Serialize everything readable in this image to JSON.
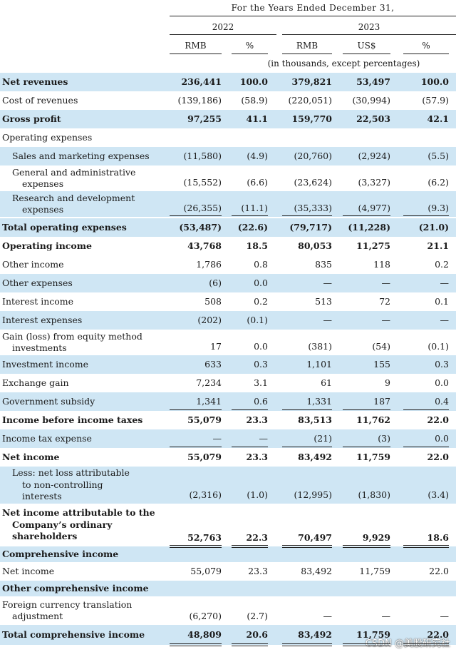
{
  "header": {
    "period": "For the  Years Ended December  31,",
    "year1": "2022",
    "year2": "2023",
    "columns": [
      "RMB",
      "%",
      "RMB",
      "US$",
      "%"
    ],
    "unit_note": "(in thousands, except percentages)"
  },
  "rows": [
    {
      "label": [
        "Net revenues"
      ],
      "bold": true,
      "values": [
        "236,441",
        "100.0",
        "379,821",
        "53,497",
        "100.0"
      ]
    },
    {
      "label": [
        "Cost of revenues"
      ],
      "values": [
        "(139,186)",
        "(58.9)",
        "(220,051)",
        "(30,994)",
        "(57.9)"
      ]
    },
    {
      "label": [
        "Gross profit"
      ],
      "bold": true,
      "values": [
        "97,255",
        "41.1",
        "159,770",
        "22,503",
        "42.1"
      ]
    },
    {
      "label": [
        "Operating expenses"
      ],
      "values": [
        "",
        "",
        "",
        "",
        ""
      ]
    },
    {
      "label": [
        "Sales and marketing expenses"
      ],
      "values": [
        "(11,580)",
        "(4.9)",
        "(20,760)",
        "(2,924)",
        "(5.5)"
      ]
    },
    {
      "label": [
        "General and administrative",
        "expenses"
      ],
      "values": [
        "(15,552)",
        "(6.6)",
        "(23,624)",
        "(3,327)",
        "(6.2)"
      ]
    },
    {
      "label": [
        "Research and development",
        "expenses"
      ],
      "values": [
        "(26,355)",
        "(11.1)",
        "(35,333)",
        "(4,977)",
        "(9.3)"
      ]
    },
    {
      "label": [
        "Total operating expenses"
      ],
      "bold": true,
      "values": [
        "(53,487)",
        "(22.6)",
        "(79,717)",
        "(11,228)",
        "(21.0)"
      ]
    },
    {
      "label": [
        "Operating income"
      ],
      "bold": true,
      "values": [
        "43,768",
        "18.5",
        "80,053",
        "11,275",
        "21.1"
      ]
    },
    {
      "label": [
        "Other income"
      ],
      "values": [
        "1,786",
        "0.8",
        "835",
        "118",
        "0.2"
      ]
    },
    {
      "label": [
        "Other expenses"
      ],
      "values": [
        "(6)",
        "0.0",
        "—",
        "—",
        "—"
      ]
    },
    {
      "label": [
        "Interest income"
      ],
      "values": [
        "508",
        "0.2",
        "513",
        "72",
        "0.1"
      ]
    },
    {
      "label": [
        "Interest expenses"
      ],
      "values": [
        "(202)",
        "(0.1)",
        "—",
        "—",
        "—"
      ]
    },
    {
      "label": [
        "Gain (loss) from equity method",
        "investments"
      ],
      "values": [
        "17",
        "0.0",
        "(381)",
        "(54)",
        "(0.1)"
      ]
    },
    {
      "label": [
        "Investment income"
      ],
      "values": [
        "633",
        "0.3",
        "1,101",
        "155",
        "0.3"
      ]
    },
    {
      "label": [
        "Exchange gain"
      ],
      "values": [
        "7,234",
        "3.1",
        "61",
        "9",
        "0.0"
      ]
    },
    {
      "label": [
        "Government subsidy"
      ],
      "values": [
        "1,341",
        "0.6",
        "1,331",
        "187",
        "0.4"
      ]
    },
    {
      "label": [
        "Income before income taxes"
      ],
      "bold": true,
      "values": [
        "55,079",
        "23.3",
        "83,513",
        "11,762",
        "22.0"
      ]
    },
    {
      "label": [
        "Income tax expense"
      ],
      "values": [
        "—",
        "—",
        "(21)",
        "(3)",
        "0.0"
      ]
    },
    {
      "label": [
        "Net income"
      ],
      "bold": true,
      "values": [
        "55,079",
        "23.3",
        "83,492",
        "11,759",
        "22.0"
      ]
    },
    {
      "label": [
        "Less: net loss attributable",
        "to non-controlling",
        "interests"
      ],
      "values": [
        "(2,316)",
        "(1.0)",
        "(12,995)",
        "(1,830)",
        "(3.4)"
      ]
    },
    {
      "label": [
        "Net income attributable to the",
        "Company’s ordinary",
        "shareholders"
      ],
      "bold": true,
      "values": [
        "52,763",
        "22.3",
        "70,497",
        "9,929",
        "18.6"
      ]
    },
    {
      "label": [
        "Comprehensive income"
      ],
      "bold": true,
      "values": [
        "",
        "",
        "",
        "",
        ""
      ]
    },
    {
      "label": [
        "Net income"
      ],
      "values": [
        "55,079",
        "23.3",
        "83,492",
        "11,759",
        "22.0"
      ]
    },
    {
      "label": [
        "Other comprehensive income"
      ],
      "bold": true,
      "values": [
        "",
        "",
        "",
        "",
        ""
      ]
    },
    {
      "label": [
        "Foreign currency translation",
        "adjustment"
      ],
      "values": [
        "(6,270)",
        "(2.7)",
        "—",
        "—",
        "—"
      ]
    },
    {
      "label": [
        "Total comprehensive income"
      ],
      "bold": true,
      "values": [
        "48,809",
        "20.6",
        "83,492",
        "11,759",
        "22.0"
      ]
    }
  ],
  "watermark": "CSDN @美股研究社"
}
